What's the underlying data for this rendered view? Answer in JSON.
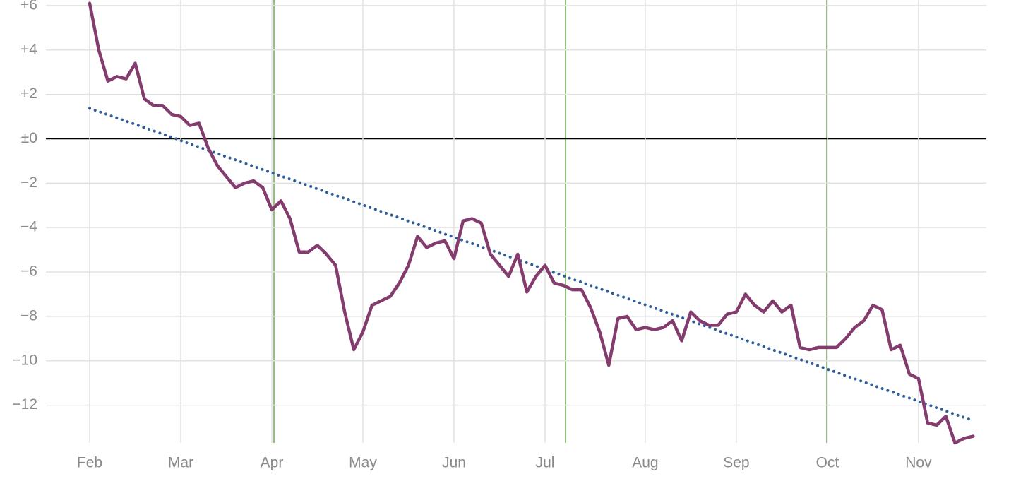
{
  "chart_data": {
    "type": "line",
    "categories": [
      "Feb",
      null,
      null,
      null,
      null,
      null,
      null,
      null,
      null,
      null,
      "Mar",
      null,
      null,
      null,
      null,
      null,
      null,
      null,
      null,
      null,
      "Apr",
      null,
      null,
      null,
      null,
      null,
      null,
      null,
      null,
      null,
      "May",
      null,
      null,
      null,
      null,
      null,
      null,
      null,
      null,
      null,
      "Jun",
      null,
      null,
      null,
      null,
      null,
      null,
      null,
      null,
      null,
      "Jul",
      null,
      null,
      null,
      null,
      null,
      null,
      null,
      null,
      null,
      null,
      "Aug",
      null,
      null,
      null,
      null,
      null,
      null,
      null,
      null,
      null,
      "Sep",
      null,
      null,
      null,
      null,
      null,
      null,
      null,
      null,
      null,
      "Oct",
      null,
      null,
      null,
      null,
      null,
      null,
      null,
      null,
      null,
      "Nov",
      null,
      null,
      null,
      null,
      null,
      null
    ],
    "series": [
      {
        "color": "#843c6e",
        "style": "solid",
        "values": [
          6.1,
          4.0,
          2.6,
          2.8,
          2.7,
          3.4,
          1.8,
          1.5,
          1.5,
          1.1,
          1.0,
          0.6,
          0.7,
          -0.4,
          -1.2,
          -1.7,
          -2.2,
          -2.0,
          -1.9,
          -2.2,
          -3.2,
          -2.8,
          -3.6,
          -5.1,
          -5.1,
          -4.8,
          -5.2,
          -5.7,
          -7.8,
          -9.5,
          -8.7,
          -7.5,
          -7.3,
          -7.1,
          -6.5,
          -5.7,
          -4.4,
          -4.9,
          -4.7,
          -4.6,
          -5.4,
          -3.7,
          -3.6,
          -3.8,
          -5.2,
          -5.7,
          -6.2,
          -5.2,
          -6.9,
          -6.2,
          -5.7,
          -6.5,
          -6.6,
          -6.8,
          -6.8,
          -7.6,
          -8.7,
          -10.2,
          -8.1,
          -8.0,
          -8.6,
          -8.5,
          -8.6,
          -8.5,
          -8.2,
          -9.1,
          -7.8,
          -8.2,
          -8.4,
          -8.4,
          -7.9,
          -7.8,
          -7.0,
          -7.5,
          -7.8,
          -7.3,
          -7.8,
          -7.5,
          -9.4,
          -9.5,
          -9.4,
          -9.4,
          -9.4,
          -9.0,
          -8.5,
          -8.2,
          -7.5,
          -7.7,
          -9.5,
          -9.3,
          -10.6,
          -10.8,
          -12.8,
          -12.9,
          -12.5,
          -13.7,
          -13.5,
          -13.4
        ]
      },
      {
        "color": "#2e5e9a",
        "style": "dotted",
        "values": [
          1.37,
          1.23,
          1.08,
          0.94,
          0.79,
          0.65,
          0.5,
          0.36,
          0.21,
          0.07,
          -0.08,
          -0.23,
          -0.37,
          -0.52,
          -0.66,
          -0.81,
          -0.95,
          -1.1,
          -1.24,
          -1.39,
          -1.53,
          -1.68,
          -1.82,
          -1.97,
          -2.11,
          -2.26,
          -2.4,
          -2.55,
          -2.69,
          -2.84,
          -2.98,
          -3.13,
          -3.27,
          -3.42,
          -3.56,
          -3.71,
          -3.85,
          -4.0,
          -4.14,
          -4.29,
          -4.43,
          -4.58,
          -4.72,
          -4.87,
          -5.01,
          -5.16,
          -5.3,
          -5.45,
          -5.59,
          -5.74,
          -5.88,
          -6.03,
          -6.17,
          -6.32,
          -6.46,
          -6.61,
          -6.75,
          -6.9,
          -7.04,
          -7.19,
          -7.33,
          -7.48,
          -7.62,
          -7.77,
          -7.91,
          -8.06,
          -8.2,
          -8.35,
          -8.49,
          -8.64,
          -8.78,
          -8.93,
          -9.07,
          -9.22,
          -9.36,
          -9.51,
          -9.65,
          -9.8,
          -9.94,
          -10.09,
          -10.23,
          -10.38,
          -10.52,
          -10.67,
          -10.81,
          -10.96,
          -11.1,
          -11.25,
          -11.39,
          -11.54,
          -11.68,
          -11.83,
          -11.97,
          -12.12,
          -12.26,
          -12.41,
          -12.55,
          -12.7
        ]
      }
    ],
    "ylim": [
      -13.7,
      6.25
    ],
    "yticks": [
      {
        "value": 6,
        "label": "+6"
      },
      {
        "value": 4,
        "label": "+4"
      },
      {
        "value": 2,
        "label": "+2"
      },
      {
        "value": 0,
        "label": "±0"
      },
      {
        "value": -2,
        "label": "−2"
      },
      {
        "value": -4,
        "label": "−4"
      },
      {
        "value": -6,
        "label": "−6"
      },
      {
        "value": -8,
        "label": "−8"
      },
      {
        "value": -10,
        "label": "−10"
      },
      {
        "value": -12,
        "label": "−12"
      }
    ],
    "grid": true
  }
}
